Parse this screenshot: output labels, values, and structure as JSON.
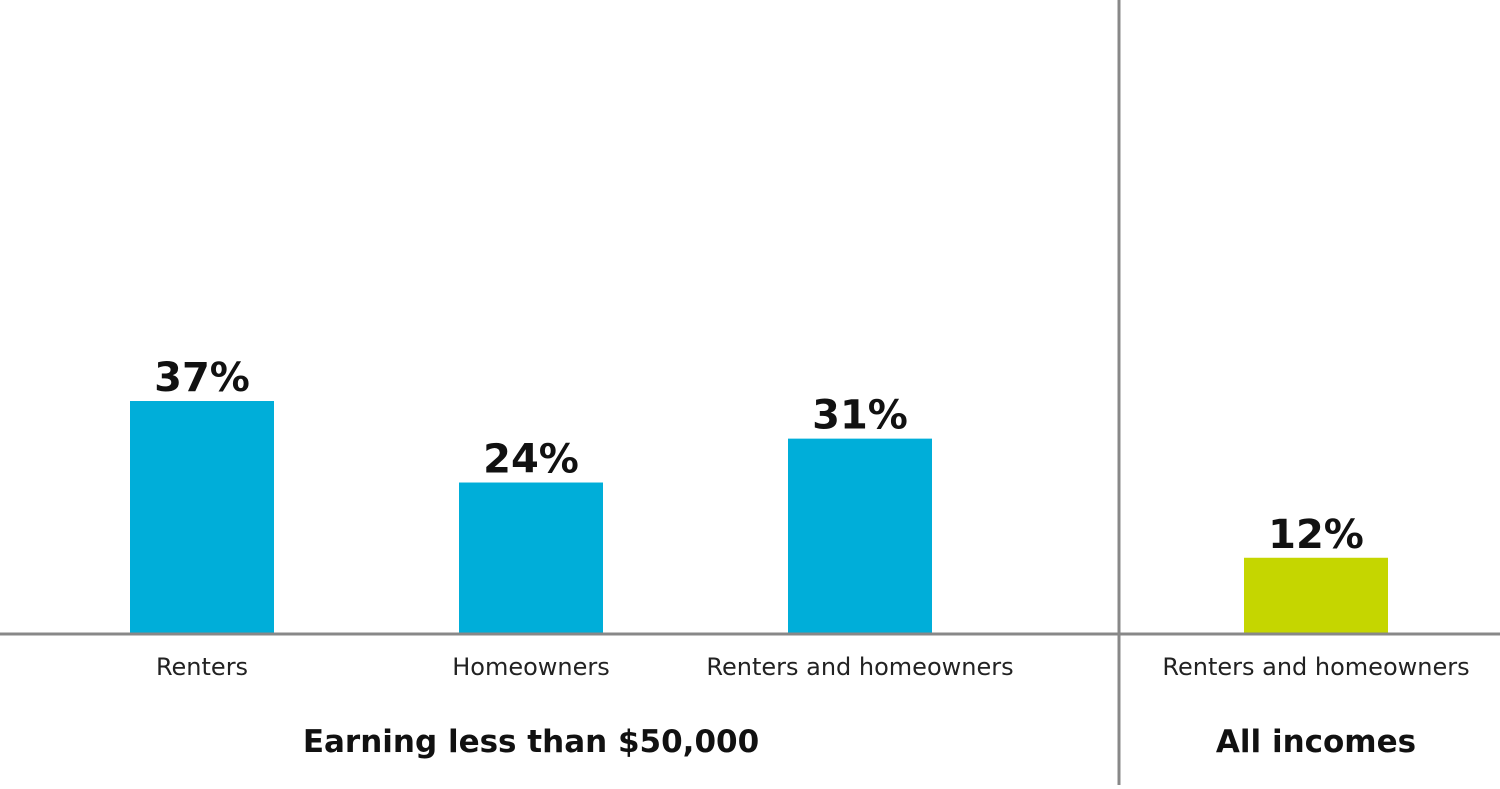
{
  "chart_data": {
    "type": "bar",
    "title": "",
    "xlabel": "",
    "ylabel": "",
    "ylim": [
      0,
      100
    ],
    "grid": false,
    "groups": [
      {
        "label": "Earning less than $50,000",
        "bars": [
          {
            "category": "Renters",
            "value": 37,
            "label": "37%",
            "color": "#00AED9"
          },
          {
            "category": "Homeowners",
            "value": 24,
            "label": "24%",
            "color": "#00AED9"
          },
          {
            "category": "Renters and homeowners",
            "value": 31,
            "label": "31%",
            "color": "#00AED9"
          }
        ]
      },
      {
        "label": "All incomes",
        "bars": [
          {
            "category": "Renters and homeowners",
            "value": 12,
            "label": "12%",
            "color": "#C5D600"
          }
        ]
      }
    ]
  },
  "colors": {
    "axis": "#888888",
    "divider": "#888888"
  }
}
